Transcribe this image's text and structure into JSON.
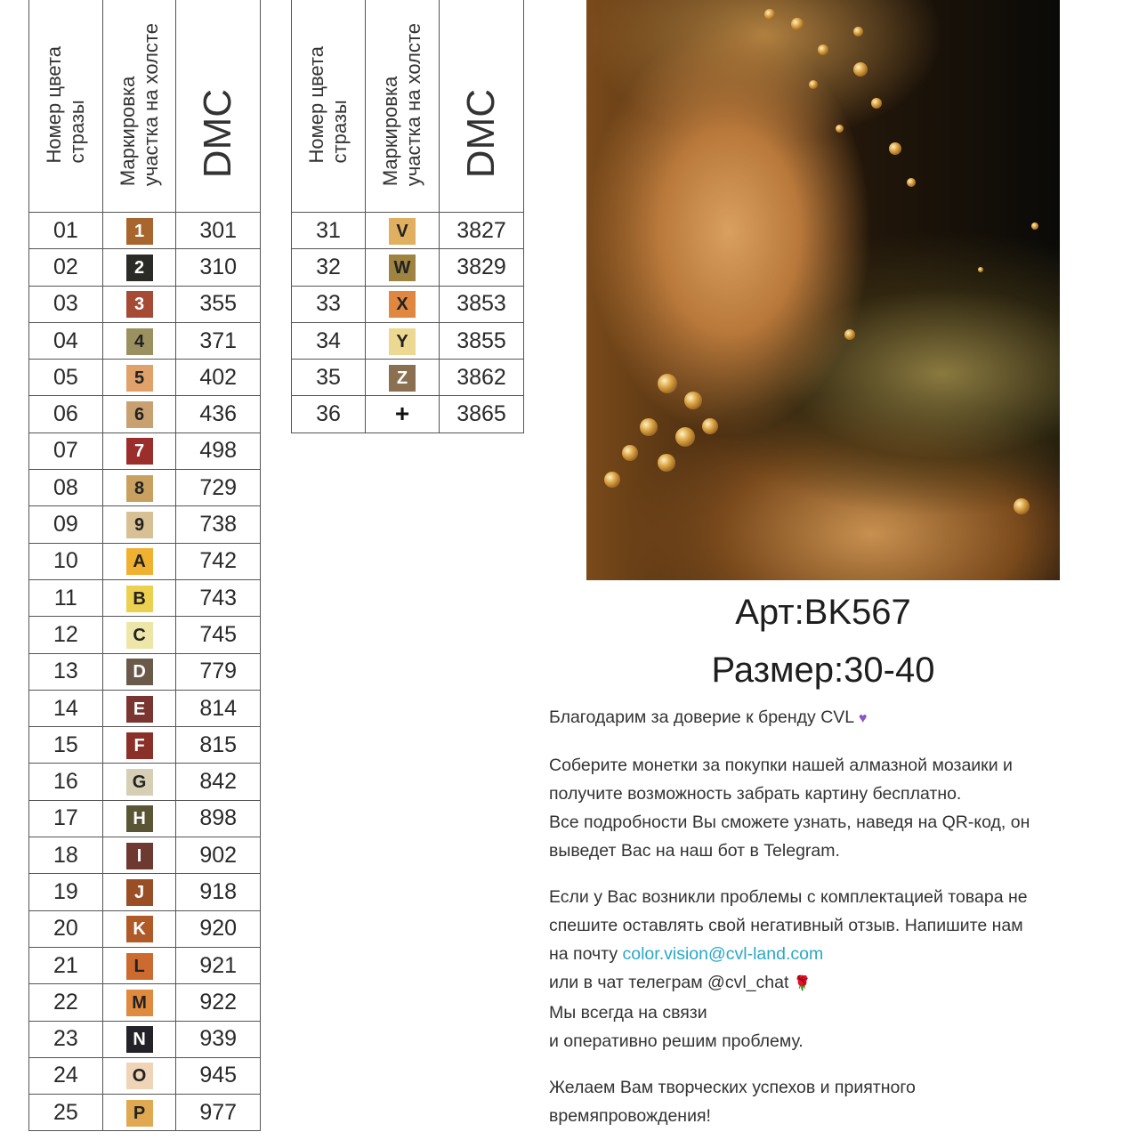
{
  "table_headers": {
    "number": "Номер цвета\nстразы",
    "marking": "Маркировка\nучастка на холсте",
    "dmc": "DMC"
  },
  "left_rows": [
    {
      "num": "01",
      "sym": "1",
      "dmc": "301",
      "color": "#a8652e",
      "text": "#fff"
    },
    {
      "num": "02",
      "sym": "2",
      "dmc": "310",
      "color": "#2a2a26",
      "text": "#fff"
    },
    {
      "num": "03",
      "sym": "3",
      "dmc": "355",
      "color": "#a44a35",
      "text": "#fff"
    },
    {
      "num": "04",
      "sym": "4",
      "dmc": "371",
      "color": "#9a9060",
      "text": "#222"
    },
    {
      "num": "05",
      "sym": "5",
      "dmc": "402",
      "color": "#e0a26a",
      "text": "#222"
    },
    {
      "num": "06",
      "sym": "6",
      "dmc": "436",
      "color": "#c9a070",
      "text": "#222"
    },
    {
      "num": "07",
      "sym": "7",
      "dmc": "498",
      "color": "#9b2d2a",
      "text": "#fff"
    },
    {
      "num": "08",
      "sym": "8",
      "dmc": "729",
      "color": "#c9a060",
      "text": "#222"
    },
    {
      "num": "09",
      "sym": "9",
      "dmc": "738",
      "color": "#d8c095",
      "text": "#222"
    },
    {
      "num": "10",
      "sym": "A",
      "dmc": "742",
      "color": "#f0b030",
      "text": "#222"
    },
    {
      "num": "11",
      "sym": "B",
      "dmc": "743",
      "color": "#ecd050",
      "text": "#222"
    },
    {
      "num": "12",
      "sym": "C",
      "dmc": "745",
      "color": "#ede6a8",
      "text": "#222"
    },
    {
      "num": "13",
      "sym": "D",
      "dmc": "779",
      "color": "#6b5a4a",
      "text": "#fff"
    },
    {
      "num": "14",
      "sym": "E",
      "dmc": "814",
      "color": "#7a3530",
      "text": "#fff"
    },
    {
      "num": "15",
      "sym": "F",
      "dmc": "815",
      "color": "#8a3028",
      "text": "#fff"
    },
    {
      "num": "16",
      "sym": "G",
      "dmc": "842",
      "color": "#d6cfb5",
      "text": "#222"
    },
    {
      "num": "17",
      "sym": "H",
      "dmc": "898",
      "color": "#5a5535",
      "text": "#fff"
    },
    {
      "num": "18",
      "sym": "I",
      "dmc": "902",
      "color": "#6e3a30",
      "text": "#fff"
    },
    {
      "num": "19",
      "sym": "J",
      "dmc": "918",
      "color": "#9a4e25",
      "text": "#fff"
    },
    {
      "num": "20",
      "sym": "K",
      "dmc": "920",
      "color": "#b05a28",
      "text": "#fff"
    },
    {
      "num": "21",
      "sym": "L",
      "dmc": "921",
      "color": "#cc6a30",
      "text": "#222"
    },
    {
      "num": "22",
      "sym": "M",
      "dmc": "922",
      "color": "#e08a40",
      "text": "#222"
    },
    {
      "num": "23",
      "sym": "N",
      "dmc": "939",
      "color": "#222228",
      "text": "#fff"
    },
    {
      "num": "24",
      "sym": "O",
      "dmc": "945",
      "color": "#f0d4b8",
      "text": "#222"
    },
    {
      "num": "25",
      "sym": "P",
      "dmc": "977",
      "color": "#e0a850",
      "text": "#222"
    }
  ],
  "right_rows": [
    {
      "num": "31",
      "sym": "V",
      "dmc": "3827",
      "color": "#e0b060",
      "text": "#222"
    },
    {
      "num": "32",
      "sym": "W",
      "dmc": "3829",
      "color": "#9e8440",
      "text": "#222"
    },
    {
      "num": "33",
      "sym": "X",
      "dmc": "3853",
      "color": "#e08840",
      "text": "#222"
    },
    {
      "num": "34",
      "sym": "Y",
      "dmc": "3855",
      "color": "#ecd890",
      "text": "#222"
    },
    {
      "num": "35",
      "sym": "Z",
      "dmc": "3862",
      "color": "#8a7050",
      "text": "#fff"
    },
    {
      "num": "36",
      "sym": "+",
      "dmc": "3865",
      "color": "",
      "text": "#111"
    }
  ],
  "product": {
    "article": "Арт:BK567",
    "size": "Размер:30-40"
  },
  "message": {
    "thanks": "Благодарим за доверие к бренду CVL",
    "coins_1": "Соберите монетки за покупки нашей алмазной мозаики и",
    "coins_2": "получите возможность забрать картину бесплатно.",
    "coins_3": "Все подробности Вы сможете узнать, наведя на QR-код, он",
    "coins_4": "выведет Вас на наш бот в Telegram.",
    "problem_1": "Если у Вас возникли проблемы с комплектацией товара не",
    "problem_2": "спешите оставлять свой негативный отзыв. Напишите нам",
    "problem_3": "на почту",
    "email": "color.vision@cvl-land.com",
    "problem_4": "или в чат телеграм @cvl_chat",
    "problem_5": "Мы всегда на связи",
    "problem_6": "и оперативно решим проблему.",
    "wish_1": "Желаем Вам творческих успехов и приятного",
    "wish_2": "времяпровождения!"
  },
  "icons": {
    "heart": "purple-heart-icon",
    "rose": "rose-icon"
  },
  "colors": {
    "link": "#2aa8c8"
  }
}
